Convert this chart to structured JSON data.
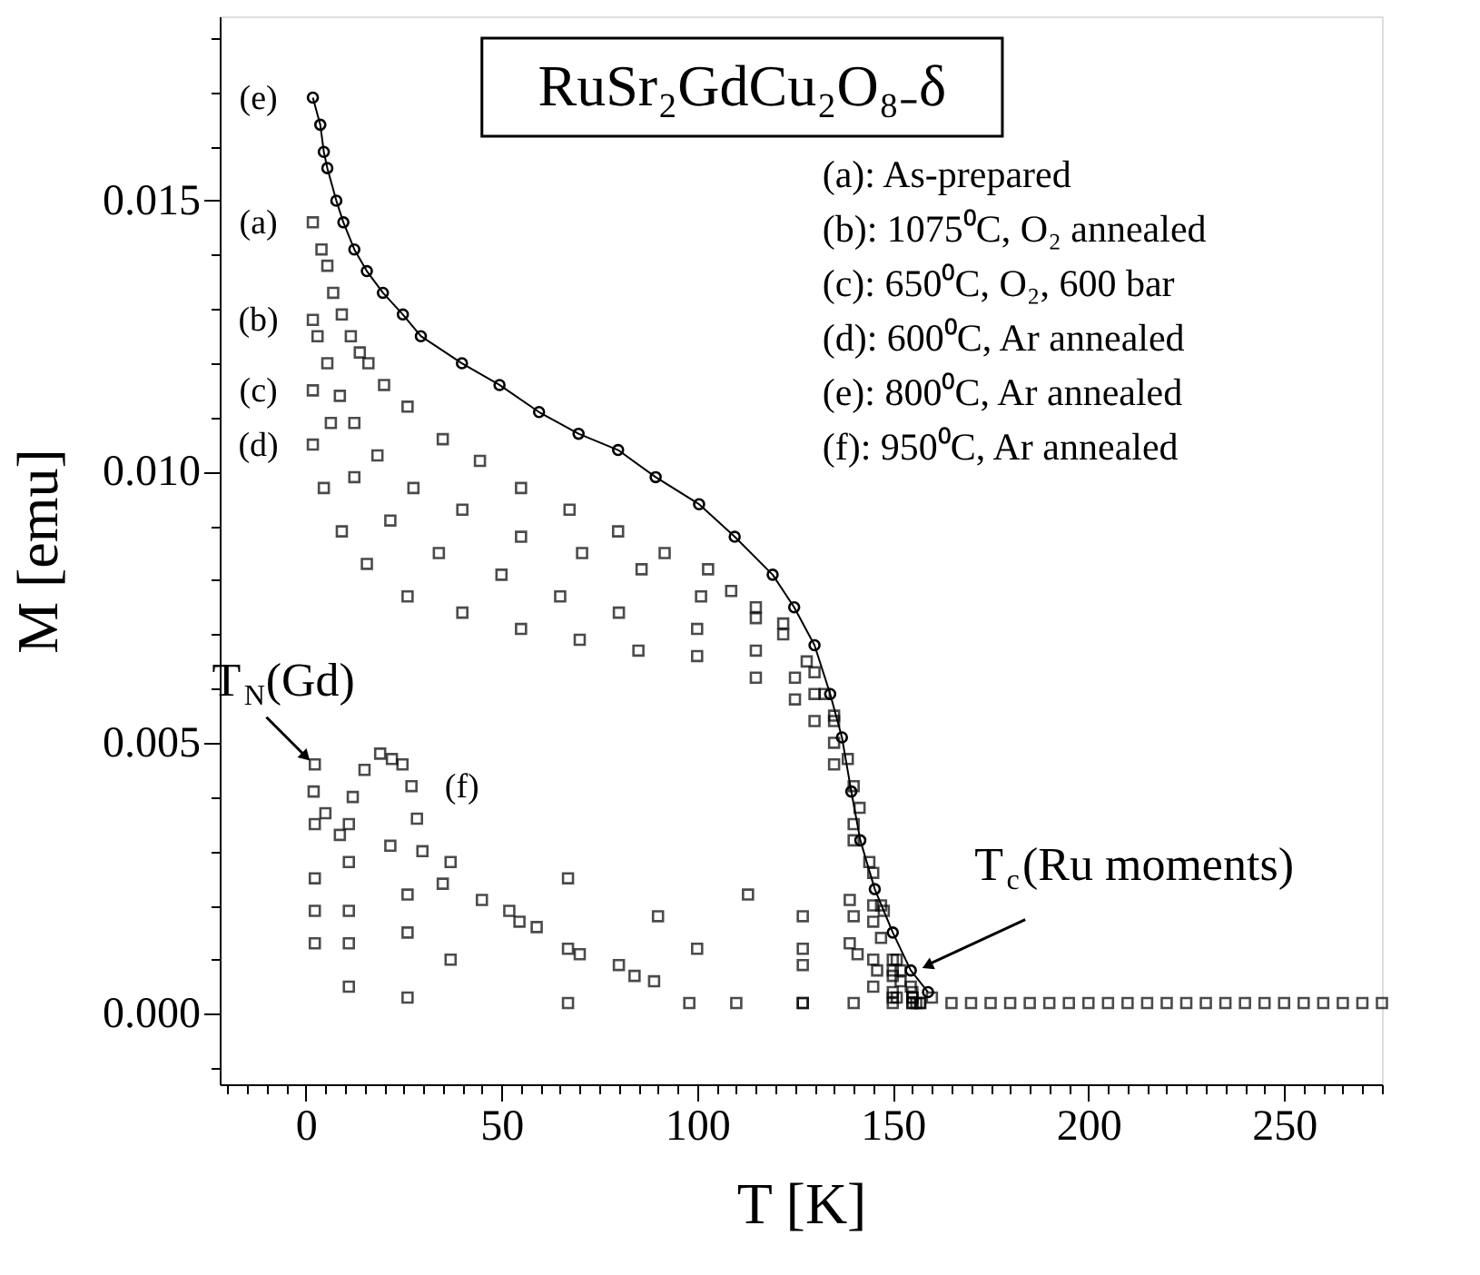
{
  "chart_data": {
    "type": "scatter",
    "title": "RuSr₂GdCu₂O₈₋δ",
    "xlabel": "T [K]",
    "ylabel": "M [emu]",
    "xlim": [
      -22,
      275
    ],
    "ylim": [
      -0.0013,
      0.0184
    ],
    "xticks": [
      {
        "value": -20,
        "label": null
      },
      {
        "value": -15,
        "label": null
      },
      {
        "value": -10,
        "label": null
      },
      {
        "value": -5,
        "label": null
      },
      0,
      {
        "value": 5,
        "label": null
      },
      {
        "value": 10,
        "label": null
      },
      {
        "value": 15,
        "label": null
      },
      {
        "value": 20,
        "label": null
      },
      {
        "value": 25,
        "label": null
      },
      {
        "value": 30,
        "label": null
      },
      {
        "value": 35,
        "label": null
      },
      {
        "value": 40,
        "label": null
      },
      {
        "value": 45,
        "label": null
      },
      50,
      {
        "value": 55,
        "label": null
      },
      {
        "value": 60,
        "label": null
      },
      {
        "value": 65,
        "label": null
      },
      {
        "value": 70,
        "label": null
      },
      {
        "value": 75,
        "label": null
      },
      {
        "value": 80,
        "label": null
      },
      {
        "value": 85,
        "label": null
      },
      {
        "value": 90,
        "label": null
      },
      {
        "value": 95,
        "label": null
      },
      100,
      {
        "value": 105,
        "label": null
      },
      {
        "value": 110,
        "label": null
      },
      {
        "value": 115,
        "label": null
      },
      {
        "value": 120,
        "label": null
      },
      {
        "value": 125,
        "label": null
      },
      {
        "value": 130,
        "label": null
      },
      {
        "value": 135,
        "label": null
      },
      {
        "value": 140,
        "label": null
      },
      {
        "value": 145,
        "label": null
      },
      150,
      {
        "value": 155,
        "label": null
      },
      {
        "value": 160,
        "label": null
      },
      {
        "value": 165,
        "label": null
      },
      {
        "value": 170,
        "label": null
      },
      {
        "value": 175,
        "label": null
      },
      {
        "value": 180,
        "label": null
      },
      {
        "value": 185,
        "label": null
      },
      {
        "value": 190,
        "label": null
      },
      {
        "value": 195,
        "label": null
      },
      200,
      {
        "value": 205,
        "label": null
      },
      {
        "value": 210,
        "label": null
      },
      {
        "value": 215,
        "label": null
      },
      {
        "value": 220,
        "label": null
      },
      {
        "value": 225,
        "label": null
      },
      {
        "value": 230,
        "label": null
      },
      {
        "value": 235,
        "label": null
      },
      {
        "value": 240,
        "label": null
      },
      {
        "value": 245,
        "label": null
      },
      250,
      {
        "value": 255,
        "label": null
      },
      {
        "value": 260,
        "label": null
      },
      {
        "value": 265,
        "label": null
      },
      {
        "value": 270,
        "label": null
      },
      {
        "value": 275,
        "label": null
      }
    ],
    "yticks": [
      {
        "value": -0.001,
        "label": null
      },
      {
        "value": 0,
        "label": "0.000"
      },
      {
        "value": 0.001,
        "label": null
      },
      {
        "value": 0.002,
        "label": null
      },
      {
        "value": 0.003,
        "label": null
      },
      {
        "value": 0.004,
        "label": null
      },
      {
        "value": 0.005,
        "label": "0.005"
      },
      {
        "value": 0.006,
        "label": null
      },
      {
        "value": 0.007,
        "label": null
      },
      {
        "value": 0.008,
        "label": null
      },
      {
        "value": 0.009,
        "label": null
      },
      {
        "value": 0.01,
        "label": "0.010"
      },
      {
        "value": 0.011,
        "label": null
      },
      {
        "value": 0.012,
        "label": null
      },
      {
        "value": 0.013,
        "label": null
      },
      {
        "value": 0.014,
        "label": null
      },
      {
        "value": 0.015,
        "label": "0.015"
      },
      {
        "value": 0.016,
        "label": null
      },
      {
        "value": 0.017,
        "label": null
      },
      {
        "value": 0.018,
        "label": null
      }
    ],
    "grid": false,
    "series": [
      {
        "name": "(e)",
        "type": "line",
        "marker": "circle",
        "line_style": "solid",
        "color": "#000000",
        "x": [
          1.8,
          3.7,
          4.6,
          5.5,
          7.8,
          9.6,
          12.4,
          15.6,
          19.7,
          24.8,
          29.4,
          39.9,
          49.5,
          59.6,
          69.7,
          79.8,
          89.4,
          100.5,
          109.6,
          119.3,
          124.8,
          130,
          134,
          137,
          139.4,
          141.7,
          145.4,
          150,
          154.6,
          159
        ],
        "values": [
          0.0169,
          0.0164,
          0.0159,
          0.0156,
          0.015,
          0.0146,
          0.0141,
          0.0137,
          0.0133,
          0.0129,
          0.0125,
          0.012,
          0.0116,
          0.0111,
          0.0107,
          0.0104,
          0.0099,
          0.0094,
          0.0088,
          0.0081,
          0.0075,
          0.0068,
          0.0059,
          0.0051,
          0.0041,
          0.0032,
          0.0023,
          0.0015,
          0.0008,
          0.0004
        ]
      },
      {
        "name": "(a)",
        "marker": "square",
        "color": "#000000",
        "x": [
          1.8,
          4,
          5.5,
          7,
          9.2,
          11.5,
          13.8,
          16,
          20,
          26,
          35,
          44.5,
          55,
          67.4,
          79.8,
          91.7,
          102.8,
          108.7,
          115,
          122,
          128,
          132.6,
          135,
          138.5,
          141.5,
          144,
          147.7,
          151,
          154.6,
          160,
          165,
          170,
          175,
          180,
          185,
          190,
          195,
          200,
          205,
          210,
          215,
          220,
          225,
          230,
          235,
          240,
          245,
          250,
          255,
          260,
          265,
          270,
          275
        ],
        "values": [
          0.0146,
          0.0141,
          0.0138,
          0.0133,
          0.0129,
          0.0125,
          0.0122,
          0.012,
          0.0116,
          0.0112,
          0.0106,
          0.0102,
          0.0097,
          0.0093,
          0.0089,
          0.0085,
          0.0082,
          0.0078,
          0.0075,
          0.0072,
          0.0065,
          0.0059,
          0.0054,
          0.0047,
          0.0038,
          0.0028,
          0.0019,
          0.001,
          0.0005,
          0.0003,
          0.0002,
          0.0002,
          0.0002,
          0.0002,
          0.0002,
          0.0002,
          0.0002,
          0.0002,
          0.0002,
          0.0002,
          0.0002,
          0.0002,
          0.0002,
          0.0002,
          0.0002,
          0.0002,
          0.0002,
          0.0002,
          0.0002,
          0.0002,
          0.0002,
          0.0002,
          0.0002
        ]
      },
      {
        "name": "(b)",
        "marker": "square",
        "color": "#000000",
        "x": [
          1.8,
          3,
          5.5,
          8.7,
          12.4,
          18.3,
          27.5,
          40,
          55,
          70.6,
          85.8,
          101,
          115,
          122,
          130,
          135,
          140,
          145,
          150,
          155
        ],
        "values": [
          0.0128,
          0.0125,
          0.012,
          0.0114,
          0.0109,
          0.0103,
          0.0097,
          0.0093,
          0.0088,
          0.0085,
          0.0082,
          0.0077,
          0.0073,
          0.007,
          0.0063,
          0.0055,
          0.0042,
          0.0026,
          0.001,
          0.0004
        ]
      },
      {
        "name": "(c)",
        "marker": "square",
        "color": "#000000",
        "x": [
          1.8,
          6.4,
          12.4,
          21.6,
          34,
          50,
          65,
          80,
          100,
          115,
          125,
          130,
          135,
          140,
          145,
          150,
          155
        ],
        "values": [
          0.0115,
          0.0109,
          0.0099,
          0.0091,
          0.0085,
          0.0081,
          0.0077,
          0.0074,
          0.0071,
          0.0067,
          0.0062,
          0.0059,
          0.005,
          0.0035,
          0.002,
          0.0008,
          0.0003
        ]
      },
      {
        "name": "(d)",
        "marker": "square",
        "color": "#000000",
        "x": [
          1.8,
          4.6,
          9.2,
          15.6,
          26,
          40,
          55,
          70,
          85,
          100,
          115,
          125,
          130,
          135,
          140,
          145,
          150,
          155
        ],
        "values": [
          0.0105,
          0.0097,
          0.0089,
          0.0083,
          0.0077,
          0.0074,
          0.0071,
          0.0069,
          0.0067,
          0.0066,
          0.0062,
          0.0058,
          0.0054,
          0.0046,
          0.0032,
          0.0017,
          0.0007,
          0.0003
        ]
      },
      {
        "name": "(f)",
        "marker": "square",
        "color": "#000000",
        "x": [
          2,
          5,
          8.7,
          12,
          15,
          19,
          22,
          24.7,
          27,
          28.4,
          29.8,
          35,
          45,
          54.6,
          59,
          70,
          84,
          89,
          98,
          110,
          127,
          140,
          150
        ],
        "values": [
          0.0041,
          0.0037,
          0.0033,
          0.004,
          0.0045,
          0.0048,
          0.0047,
          0.0046,
          0.0042,
          0.0036,
          0.003,
          0.0024,
          0.0021,
          0.0017,
          0.0016,
          0.0011,
          0.0007,
          0.0006,
          0.0002,
          0.0002,
          0.0002,
          0.0002,
          0.0002
        ]
      },
      {
        "marker": "square",
        "color": "#000000",
        "x": [
          2.3,
          11,
          21.6,
          37,
          67,
          113,
          139,
          147,
          152,
          157
        ],
        "values": [
          0.0046,
          0.0035,
          0.0031,
          0.0028,
          0.0025,
          0.0022,
          0.0021,
          0.002,
          0.0008,
          0.0002
        ]
      },
      {
        "marker": "square",
        "color": "#000000",
        "x": [
          2.3,
          11,
          26,
          52,
          90,
          127,
          140,
          147,
          152,
          157
        ],
        "values": [
          0.0035,
          0.0028,
          0.0022,
          0.0019,
          0.0018,
          0.0018,
          0.0018,
          0.0014,
          0.0006,
          0.0002
        ]
      },
      {
        "marker": "square",
        "color": "#000000",
        "x": [
          2.3,
          11,
          26,
          67,
          100,
          127,
          139,
          145,
          150,
          155
        ],
        "values": [
          0.0025,
          0.0019,
          0.0015,
          0.0012,
          0.0012,
          0.0012,
          0.0013,
          0.001,
          0.0004,
          0.0002
        ]
      },
      {
        "marker": "square",
        "color": "#000000",
        "x": [
          2.3,
          11,
          37,
          80,
          127,
          141,
          146,
          151,
          156
        ],
        "values": [
          0.0019,
          0.0013,
          0.001,
          0.0009,
          0.0009,
          0.0011,
          0.0008,
          0.0003,
          0.0002
        ]
      },
      {
        "marker": "square",
        "color": "#000000",
        "x": [
          2.3,
          11,
          26,
          67,
          127,
          145,
          150,
          155
        ],
        "values": [
          0.0013,
          0.0005,
          0.0003,
          0.0002,
          0.0002,
          0.0005,
          0.0003,
          0.0002
        ]
      }
    ],
    "annotations": [
      "(a): As-prepared",
      "(b): 1075⁰C, O₂ annealed",
      "(c): 650⁰C, O₂, 600 bar",
      "(d): 600⁰C, Ar annealed",
      "(e): 800⁰C, Ar annealed",
      "(f): 950⁰C, Ar annealed",
      {
        "text": "T$_{N}$(Gd)",
        "x": 2,
        "y": 0.0046
      },
      {
        "text": "T$_{c}$(Ru moments)",
        "x": 156,
        "y": 0.0008
      }
    ]
  }
}
